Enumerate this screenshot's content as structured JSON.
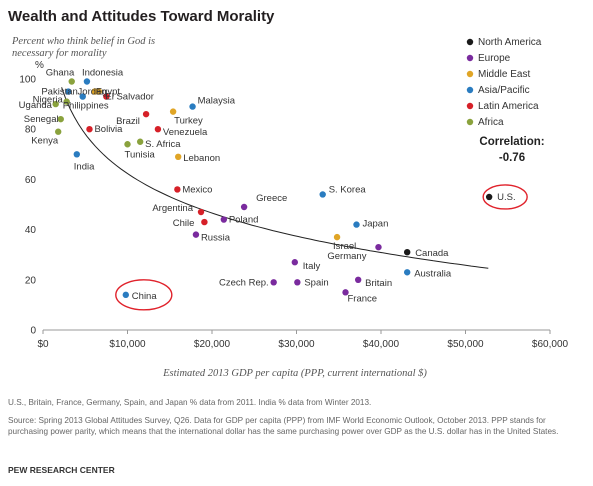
{
  "title": "Wealth and Attitudes Toward Morality",
  "footnote": "U.S., Britain, France, Germany, Spain, and Japan % data from 2011. India % data from Winter 2013.",
  "source": "Source: Spring 2013 Global Attitudes Survey, Q26. Data for GDP per capita (PPP) from IMF World Economic Outlook, October 2013. PPP stands for purchasing power parity, which means that the international dollar has the same purchasing power over GDP as the U.S. dollar has in the United States.",
  "brand": "PEW RESEARCH CENTER",
  "colors": {
    "North America": "#1a1a1a",
    "Europe": "#7a2b9e",
    "Middle East": "#e0a526",
    "Asia/Pacific": "#2a7cc0",
    "Latin America": "#d62028",
    "Africa": "#8aa23d",
    "trendline": "#222222",
    "highlight": "#e0222b",
    "axis": "#999999"
  },
  "chart_data": {
    "type": "scatter",
    "ylabel_lines": [
      "Percent who think belief in God is",
      "necessary for morality"
    ],
    "y_unit": "%",
    "xlabel": "Estimated 2013 GDP per capita (PPP, current international $)",
    "xlim": [
      0,
      60000
    ],
    "ylim": [
      0,
      100
    ],
    "x_ticks": [
      {
        "v": 0,
        "label": "$0"
      },
      {
        "v": 10000,
        "label": "$10,000"
      },
      {
        "v": 20000,
        "label": "$20,000"
      },
      {
        "v": 30000,
        "label": "$30,000"
      },
      {
        "v": 40000,
        "label": "$40,000"
      },
      {
        "v": 50000,
        "label": "$50,000"
      },
      {
        "v": 60000,
        "label": "$60,000"
      }
    ],
    "y_ticks": [
      {
        "v": 0,
        "label": "0"
      },
      {
        "v": 20,
        "label": "20"
      },
      {
        "v": 40,
        "label": "40"
      },
      {
        "v": 60,
        "label": "60"
      },
      {
        "v": 80,
        "label": "80"
      },
      {
        "v": 100,
        "label": "100"
      }
    ],
    "legend": [
      "North America",
      "Europe",
      "Middle East",
      "Asia/Pacific",
      "Latin America",
      "Africa"
    ],
    "legend_position": "top-right",
    "correlation_label": "Correlation:",
    "correlation_value": "-0.76",
    "trendline": {
      "type": "logarithmic",
      "intercept": 271.4,
      "slope": -22.7
    },
    "points": [
      {
        "label": "Ghana",
        "x": 3400,
        "y": 99,
        "region": "Africa"
      },
      {
        "label": "Indonesia",
        "x": 5200,
        "y": 99,
        "region": "Asia/Pacific"
      },
      {
        "label": "Pakistan",
        "x": 3000,
        "y": 95,
        "region": "Asia/Pacific"
      },
      {
        "label": "Jordan",
        "x": 6100,
        "y": 95,
        "region": "Middle East"
      },
      {
        "label": "Egypt",
        "x": 6600,
        "y": 95,
        "region": "Middle East"
      },
      {
        "label": "Nigeria",
        "x": 2800,
        "y": 91,
        "region": "Africa"
      },
      {
        "label": "El Salvador",
        "x": 7500,
        "y": 93,
        "region": "Latin America"
      },
      {
        "label": "Philippines",
        "x": 4700,
        "y": 93,
        "region": "Asia/Pacific"
      },
      {
        "label": "Uganda",
        "x": 1500,
        "y": 90,
        "region": "Africa"
      },
      {
        "label": "Senegal",
        "x": 2100,
        "y": 84,
        "region": "Africa"
      },
      {
        "label": "Kenya",
        "x": 1800,
        "y": 79,
        "region": "Africa"
      },
      {
        "label": "Bolivia",
        "x": 5500,
        "y": 80,
        "region": "Latin America"
      },
      {
        "label": "Malaysia",
        "x": 17700,
        "y": 89,
        "region": "Asia/Pacific"
      },
      {
        "label": "Turkey",
        "x": 15400,
        "y": 87,
        "region": "Middle East"
      },
      {
        "label": "Brazil",
        "x": 12200,
        "y": 86,
        "region": "Latin America"
      },
      {
        "label": "Venezuela",
        "x": 13600,
        "y": 80,
        "region": "Latin America"
      },
      {
        "label": "S. Africa",
        "x": 11500,
        "y": 75,
        "region": "Africa"
      },
      {
        "label": "Tunisia",
        "x": 10000,
        "y": 74,
        "region": "Africa"
      },
      {
        "label": "Lebanon",
        "x": 16000,
        "y": 69,
        "region": "Middle East"
      },
      {
        "label": "India",
        "x": 4000,
        "y": 70,
        "region": "Asia/Pacific"
      },
      {
        "label": "Mexico",
        "x": 15900,
        "y": 56,
        "region": "Latin America"
      },
      {
        "label": "Greece",
        "x": 23800,
        "y": 49,
        "region": "Europe"
      },
      {
        "label": "S. Korea",
        "x": 33100,
        "y": 54,
        "region": "Asia/Pacific"
      },
      {
        "label": "U.S.",
        "x": 52800,
        "y": 53,
        "region": "North America"
      },
      {
        "label": "Argentina",
        "x": 18700,
        "y": 47,
        "region": "Latin America"
      },
      {
        "label": "Chile",
        "x": 19100,
        "y": 43,
        "region": "Latin America"
      },
      {
        "label": "Poland",
        "x": 21400,
        "y": 44,
        "region": "Europe"
      },
      {
        "label": "Japan",
        "x": 37100,
        "y": 42,
        "region": "Asia/Pacific"
      },
      {
        "label": "Russia",
        "x": 18100,
        "y": 38,
        "region": "Europe"
      },
      {
        "label": "Israel",
        "x": 34800,
        "y": 37,
        "region": "Middle East"
      },
      {
        "label": "Germany",
        "x": 39700,
        "y": 33,
        "region": "Europe"
      },
      {
        "label": "Canada",
        "x": 43100,
        "y": 31,
        "region": "North America"
      },
      {
        "label": "Italy",
        "x": 29800,
        "y": 27,
        "region": "Europe"
      },
      {
        "label": "Australia",
        "x": 43100,
        "y": 23,
        "region": "Asia/Pacific"
      },
      {
        "label": "Czech Rep.",
        "x": 27300,
        "y": 19,
        "region": "Europe"
      },
      {
        "label": "Spain",
        "x": 30100,
        "y": 19,
        "region": "Europe"
      },
      {
        "label": "Britain",
        "x": 37300,
        "y": 20,
        "region": "Europe"
      },
      {
        "label": "France",
        "x": 35800,
        "y": 15,
        "region": "Europe"
      },
      {
        "label": "China",
        "x": 9800,
        "y": 14,
        "region": "Asia/Pacific"
      }
    ],
    "highlighted": [
      "U.S.",
      "China"
    ]
  }
}
